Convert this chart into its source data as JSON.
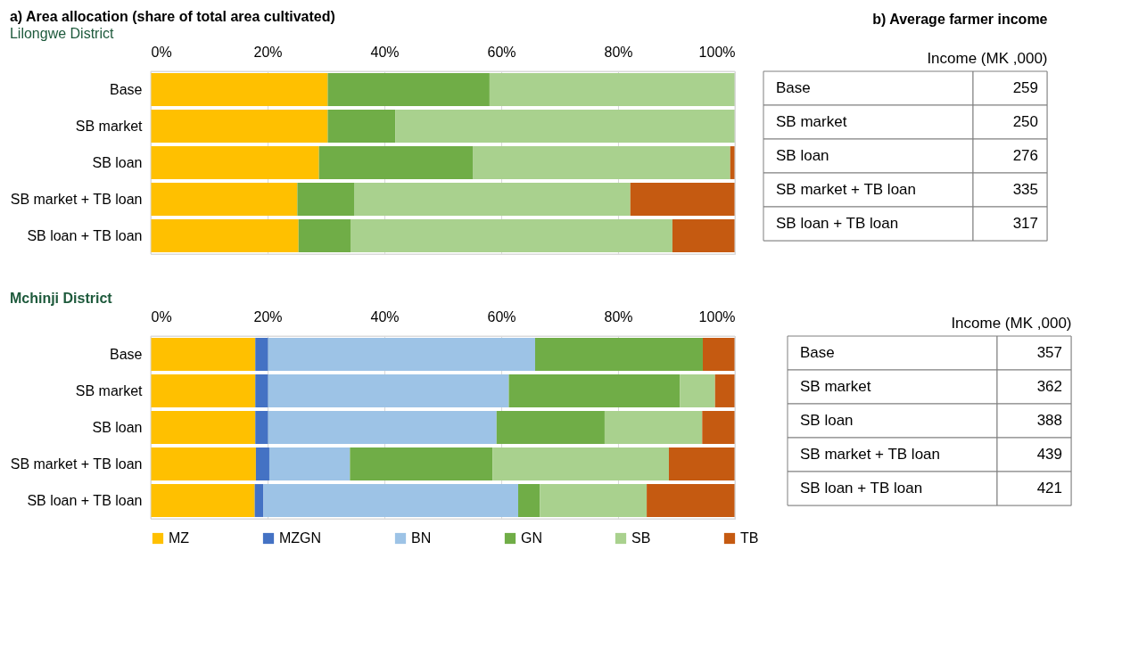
{
  "chart_data": [
    {
      "type": "bar",
      "orientation": "horizontal",
      "stacked": true,
      "title": "a) Area allocation (share of total area cultivated)",
      "subtitle": "Lilongwe District",
      "categories": [
        "Base",
        "SB market",
        "SB loan",
        "SB market + TB loan",
        "SB loan + TB loan"
      ],
      "series": [
        {
          "color": "#ffc000",
          "values": [
            30.3,
            30.3,
            28.8,
            25.1,
            25.3
          ]
        },
        {
          "color": "#70ad47",
          "values": [
            27.7,
            11.6,
            26.4,
            9.8,
            8.9
          ]
        },
        {
          "color": "#a9d18e",
          "values": [
            42.0,
            58.1,
            44.0,
            47.2,
            55.1
          ]
        },
        {
          "color": "#c55a11",
          "values": [
            0,
            0,
            0.8,
            17.9,
            10.7
          ]
        }
      ],
      "xlim": [
        0,
        100
      ],
      "xticks": [
        {
          "value": 0,
          "label": "0%"
        },
        {
          "value": 20,
          "label": "20%"
        },
        {
          "value": 40,
          "label": "40%"
        },
        {
          "value": 60,
          "label": "60%"
        },
        {
          "value": 80,
          "label": "80%"
        },
        {
          "value": 100,
          "label": "100%"
        }
      ],
      "grid": "x"
    },
    {
      "type": "other",
      "title": "b) Average farmer income",
      "subtitle": "Income (MK ,000)",
      "categories": [
        "Base",
        "SB market",
        "SB loan",
        "SB market + TB loan",
        "SB loan + TB loan"
      ],
      "values": [
        259,
        250,
        276,
        335,
        317
      ],
      "data_labels": true
    },
    {
      "type": "bar",
      "orientation": "horizontal",
      "stacked": true,
      "title": "Mchinji District",
      "categories": [
        "Base",
        "SB market",
        "SB loan",
        "SB market + TB loan",
        "SB loan + TB loan"
      ],
      "series": [
        {
          "name": "MZ",
          "color": "#ffc000",
          "values": [
            17.9,
            17.9,
            17.9,
            18.0,
            17.8
          ]
        },
        {
          "name": "MZGN",
          "color": "#4472c4",
          "values": [
            2.2,
            2.2,
            2.2,
            2.3,
            1.5
          ]
        },
        {
          "name": "BN",
          "color": "#9dc3e6",
          "values": [
            45.7,
            41.2,
            39.1,
            13.8,
            43.6
          ]
        },
        {
          "name": "GN",
          "color": "#70ad47",
          "values": [
            28.7,
            29.3,
            18.5,
            24.4,
            3.7
          ]
        },
        {
          "name": "SB",
          "color": "#a9d18e",
          "values": [
            0,
            6.0,
            16.7,
            30.2,
            18.3
          ]
        },
        {
          "name": "TB",
          "color": "#c55a11",
          "values": [
            5.5,
            3.4,
            5.6,
            11.3,
            15.1
          ]
        }
      ],
      "xlim": [
        0,
        100
      ],
      "xticks": [
        {
          "value": 0,
          "label": "0%"
        },
        {
          "value": 20,
          "label": "20%"
        },
        {
          "value": 40,
          "label": "40%"
        },
        {
          "value": 60,
          "label": "60%"
        },
        {
          "value": 80,
          "label": "80%"
        },
        {
          "value": 100,
          "label": "100%"
        }
      ],
      "grid": "x",
      "legend": "bottom"
    },
    {
      "type": "other",
      "subtitle": "Income (MK ,000)",
      "categories": [
        "Base",
        "SB market",
        "SB loan",
        "SB market + TB loan",
        "SB loan + TB loan"
      ],
      "values": [
        357,
        362,
        388,
        439,
        421
      ],
      "data_labels": true
    }
  ]
}
